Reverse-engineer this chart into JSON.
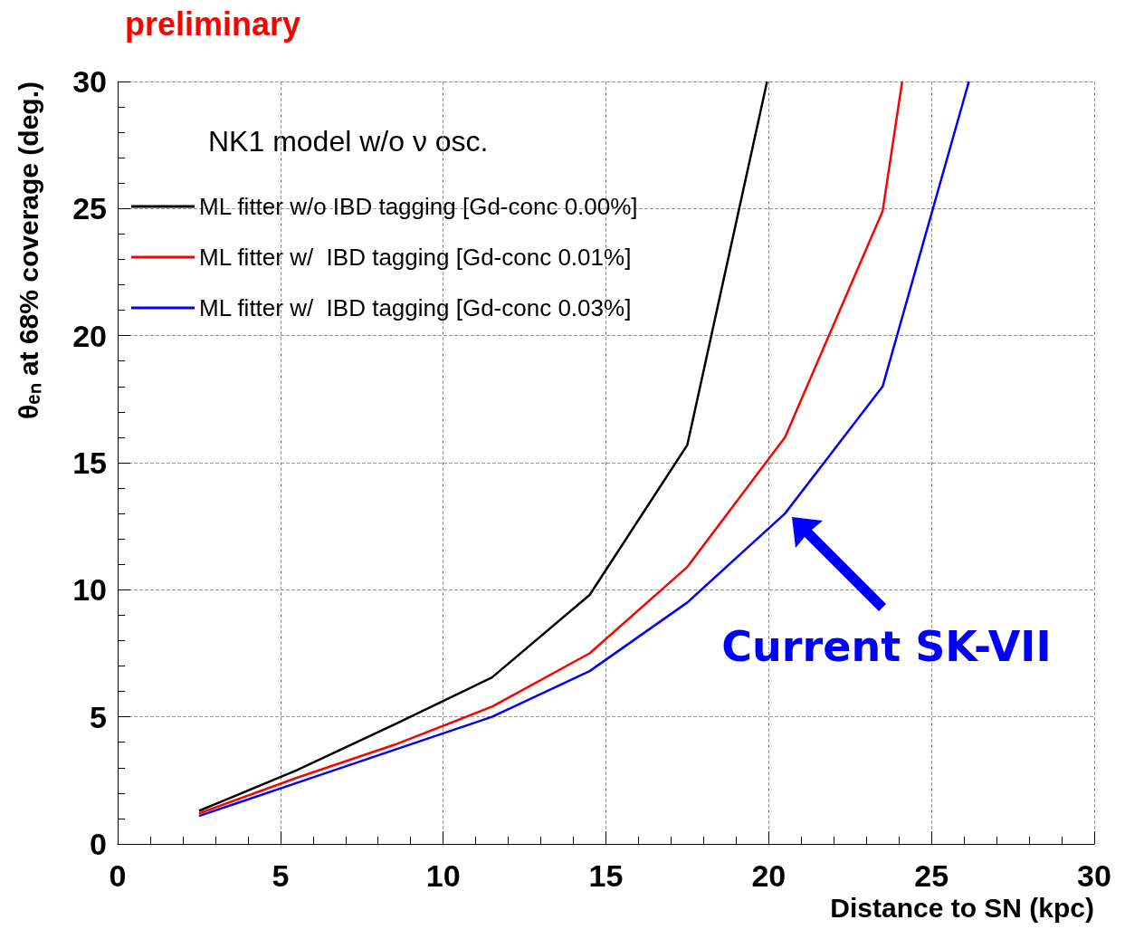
{
  "chart_data": {
    "type": "line",
    "xlabel": "Distance to SN (kpc)",
    "ylabel": "θₑₙ at 68% coverage (deg.)",
    "legend_title": "NK1 model w/o ν osc.",
    "xlim": [
      0,
      30
    ],
    "xticks": [
      0,
      5,
      10,
      15,
      20,
      25,
      30
    ],
    "ylim": [
      0,
      30
    ],
    "yticks": [
      0,
      5,
      10,
      15,
      20,
      25,
      30
    ],
    "grid": true,
    "legend": "top left",
    "marker": "none",
    "line_style": "solid",
    "annotations": [
      "preliminary",
      {
        "text": "Current SK-VII",
        "x": 20.5,
        "y": 13
      }
    ],
    "series": [
      {
        "name": "ML fitter w/o IBD tagging [Gd-conc 0.00%]",
        "color": "#000000",
        "x": [
          2.5,
          5.5,
          8.5,
          11.5,
          14.5,
          17.5,
          19.95
        ],
        "values": [
          1.3,
          2.9,
          4.7,
          6.55,
          9.8,
          15.7,
          30
        ]
      },
      {
        "name": "ML fitter w/  IBD tagging [Gd-conc 0.01%]",
        "color": "#ff0000",
        "x": [
          2.5,
          5.5,
          8.5,
          11.5,
          14.5,
          17.5,
          20.5,
          23.5,
          24.1
        ],
        "values": [
          1.2,
          2.6,
          3.9,
          5.4,
          7.5,
          10.9,
          16.0,
          24.9,
          30
        ]
      },
      {
        "name": "ML fitter w/  IBD tagging [Gd-conc 0.03%]",
        "color": "#0000ff",
        "x": [
          2.5,
          5.5,
          8.5,
          11.5,
          14.5,
          17.5,
          20.5,
          23.5,
          26.15
        ],
        "values": [
          1.1,
          2.4,
          3.7,
          5.0,
          6.8,
          9.5,
          13.0,
          18.0,
          30
        ]
      }
    ]
  }
}
